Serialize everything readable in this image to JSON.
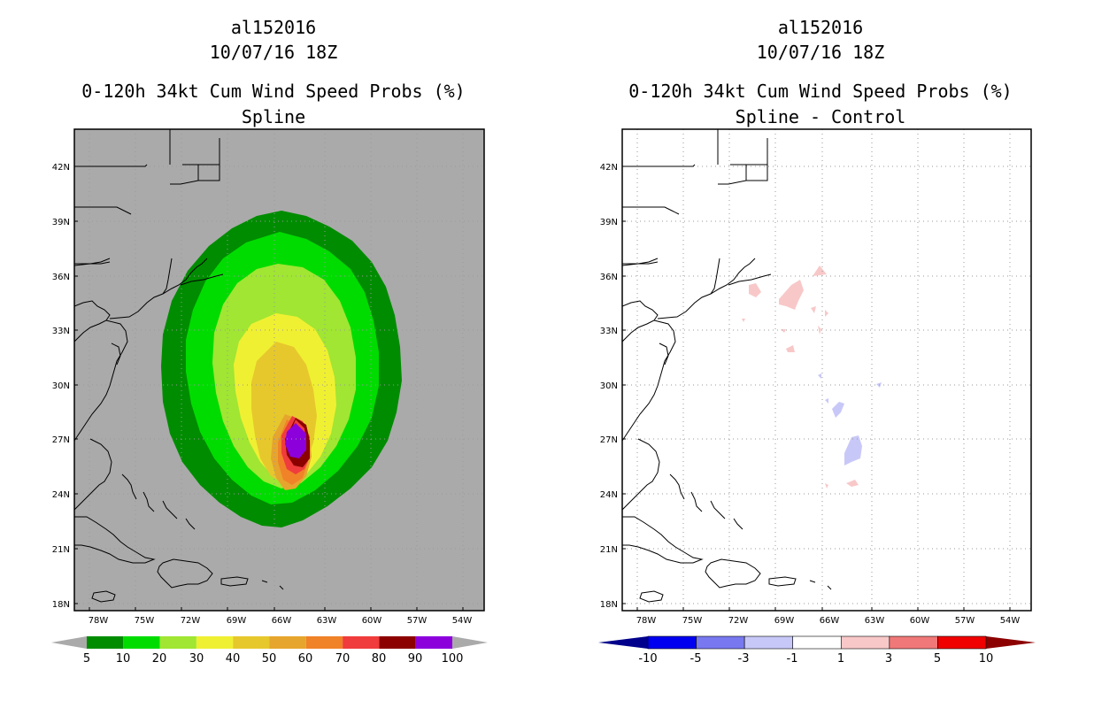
{
  "left": {
    "storm_id": "al152016",
    "datetime": "10/07/16 18Z",
    "product": "0-120h 34kt Cum Wind Speed Probs (%)",
    "subtitle": "Spline",
    "colorbar": {
      "colors": [
        "#008c00",
        "#00dc00",
        "#a0e632",
        "#f0f032",
        "#e6c82d",
        "#e6a52d",
        "#f08228",
        "#f03c3c",
        "#8c0000",
        "#8c00dc"
      ],
      "labels": [
        "5",
        "10",
        "20",
        "30",
        "40",
        "50",
        "60",
        "70",
        "80",
        "90",
        "100"
      ],
      "under_color": "#aaaaaa",
      "over_color": "#aaaaaa"
    }
  },
  "right": {
    "storm_id": "al152016",
    "datetime": "10/07/16 18Z",
    "product": "0-120h 34kt Cum Wind Speed Probs (%)",
    "subtitle": "Spline - Control",
    "colorbar": {
      "colors": [
        "#0000f0",
        "#7878f0",
        "#c8c8f8",
        "#ffffff",
        "#f8c8c8",
        "#f07878",
        "#f00000"
      ],
      "labels": [
        "-10",
        "-5",
        "-3",
        "-1",
        "1",
        "3",
        "5",
        "10"
      ],
      "under_color": "#00008c",
      "over_color": "#8c0000"
    }
  },
  "lon_labels": [
    "78W",
    "75W",
    "72W",
    "69W",
    "66W",
    "63W",
    "60W",
    "57W",
    "54W"
  ],
  "lat_labels": [
    "42N",
    "39N",
    "36N",
    "33N",
    "30N",
    "27N",
    "24N",
    "21N",
    "18N"
  ],
  "colors": {
    "land_ocean_gray": "#aaaaaa",
    "grid": "#999999"
  }
}
